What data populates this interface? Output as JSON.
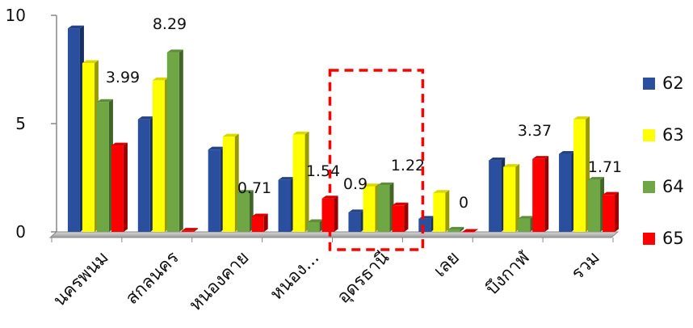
{
  "chart_data": {
    "type": "bar",
    "categories": [
      "นครพนม",
      "สกลนคร",
      "หนองคาย",
      "หนอง...",
      "อุดรธานี",
      "เลย",
      "บึงกาฬ",
      "รวม"
    ],
    "series": [
      {
        "name": "62",
        "color": "#2a4f9e",
        "values": [
          9.4,
          5.2,
          3.8,
          2.4,
          0.9,
          0.6,
          3.3,
          3.6
        ]
      },
      {
        "name": "63",
        "color": "#ffff00",
        "values": [
          7.8,
          7.0,
          4.4,
          4.5,
          2.1,
          1.8,
          3.0,
          5.2
        ]
      },
      {
        "name": "64",
        "color": "#6fa744",
        "values": [
          6.0,
          8.29,
          1.8,
          0.45,
          2.15,
          0.1,
          0.6,
          2.4
        ]
      },
      {
        "name": "65",
        "color": "#ff0000",
        "values": [
          3.99,
          0.05,
          0.71,
          1.54,
          1.22,
          0.0,
          3.37,
          1.71
        ]
      }
    ],
    "data_labels": [
      {
        "text": "3.99",
        "category": 0,
        "series": 3
      },
      {
        "text": "8.29",
        "category": 1,
        "series": 2
      },
      {
        "text": "0.71",
        "category": 2,
        "series": 3
      },
      {
        "text": "1.54",
        "category": 3,
        "series": 3
      },
      {
        "text": "0.9",
        "category": 4,
        "series": 0
      },
      {
        "text": "1.22",
        "category": 4,
        "series": 3
      },
      {
        "text": "0",
        "category": 5,
        "series": 3
      },
      {
        "text": "3.37",
        "category": 6,
        "series": 3
      },
      {
        "text": "1.71",
        "category": 7,
        "series": 3
      }
    ],
    "yticks": [
      "0",
      "5",
      "10"
    ],
    "ylim": [
      0,
      10
    ],
    "legend_position": "right",
    "highlight_category": 4,
    "highlight_color": "#ff0000"
  }
}
